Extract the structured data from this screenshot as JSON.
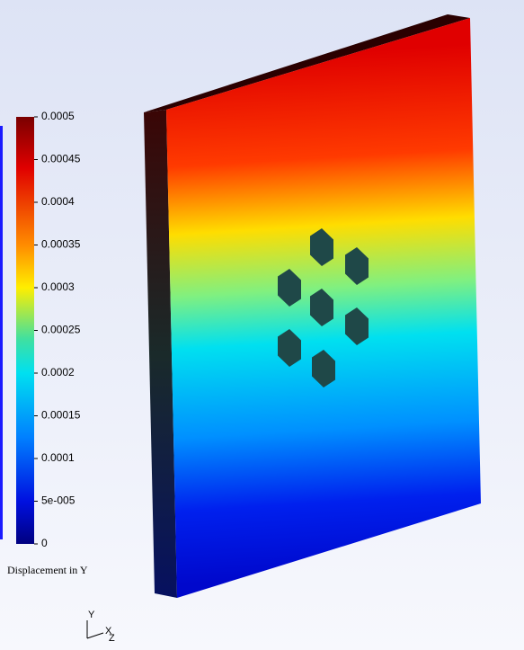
{
  "colorbar": {
    "title": "Displacement in Y",
    "ticks": [
      "0.0005",
      "0.00045",
      "0.0004",
      "0.00035",
      "0.0003",
      "0.00025",
      "0.0002",
      "0.00015",
      "0.0001",
      "5e-005",
      "0"
    ]
  },
  "triad": {
    "y": "Y",
    "x": "X",
    "z": "Z"
  }
}
